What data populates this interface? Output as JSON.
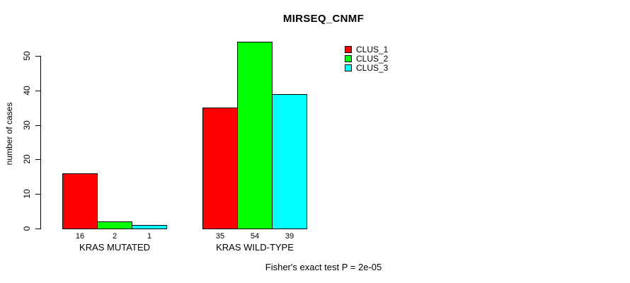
{
  "chart_data": {
    "type": "bar",
    "title": "MIRSEQ_CNMF",
    "ylabel": "number of cases",
    "xlabel": "",
    "yticks": [
      0,
      10,
      20,
      30,
      40,
      50
    ],
    "ylim": [
      0,
      55
    ],
    "grid": false,
    "legend_position": "top-right",
    "categories": [
      "KRAS MUTATED",
      "KRAS WILD-TYPE"
    ],
    "series": [
      {
        "name": "CLUS_1",
        "color": "#ff0000",
        "values": [
          16,
          35
        ]
      },
      {
        "name": "CLUS_2",
        "color": "#00ff00",
        "values": [
          2,
          54
        ]
      },
      {
        "name": "CLUS_3",
        "color": "#00ffff",
        "values": [
          1,
          39
        ]
      }
    ],
    "bar_value_labels": [
      [
        16,
        2,
        1
      ],
      [
        35,
        54,
        39
      ]
    ],
    "annotation": "Fisher's exact test P = 2e-05"
  }
}
